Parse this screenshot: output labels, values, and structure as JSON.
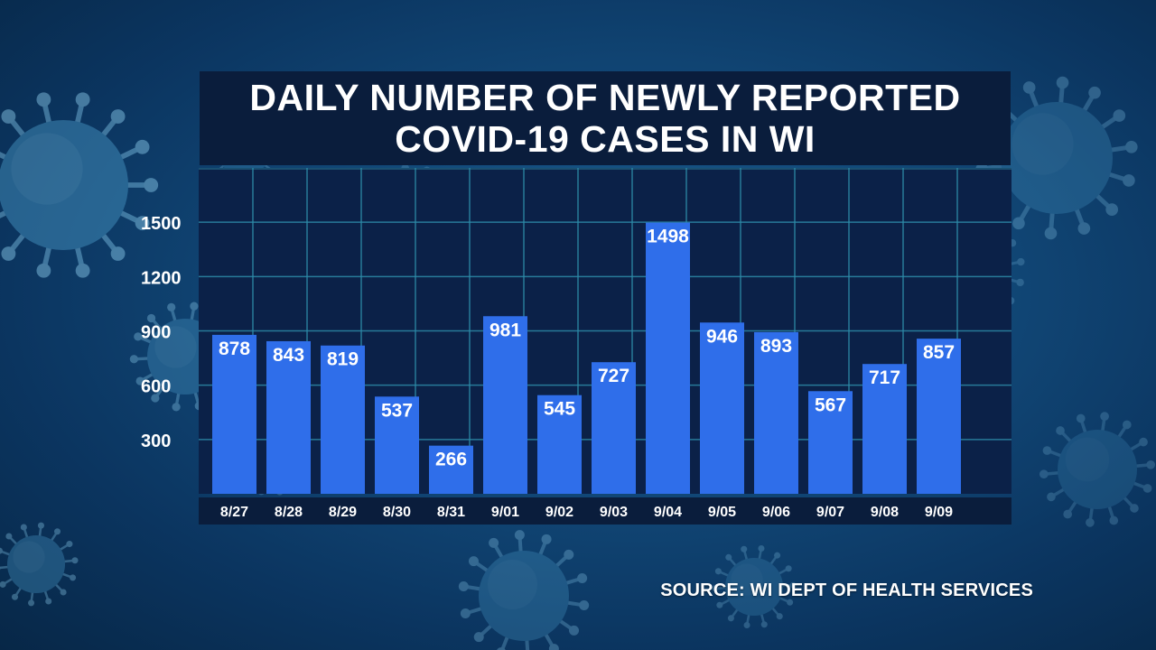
{
  "title": {
    "line1": "DAILY NUMBER OF NEWLY REPORTED",
    "line2": "COVID-19 CASES IN WI"
  },
  "source": "SOURCE: WI DEPT OF HEALTH SERVICES",
  "colors": {
    "bar": "#2f6eea",
    "plot_bg": "#0b2148",
    "title_bg": "#0a1d3c",
    "grid": "#2d8aa8",
    "axis_band": "#0a1d3c",
    "text": "#ffffff"
  },
  "chart_data": {
    "type": "bar",
    "title": "DAILY NUMBER OF NEWLY REPORTED COVID-19 CASES IN WI",
    "xlabel": "",
    "ylabel": "",
    "categories": [
      "8/27",
      "8/28",
      "8/29",
      "8/30",
      "8/31",
      "9/01",
      "9/02",
      "9/03",
      "9/04",
      "9/05",
      "9/06",
      "9/07",
      "9/08",
      "9/09"
    ],
    "values": [
      878,
      843,
      819,
      537,
      266,
      981,
      545,
      727,
      1498,
      946,
      893,
      567,
      717,
      857
    ],
    "yticks": [
      300,
      600,
      900,
      1200,
      1500
    ],
    "ylim": [
      0,
      1800
    ],
    "grid": true,
    "data_labels": true,
    "legend": "none"
  }
}
